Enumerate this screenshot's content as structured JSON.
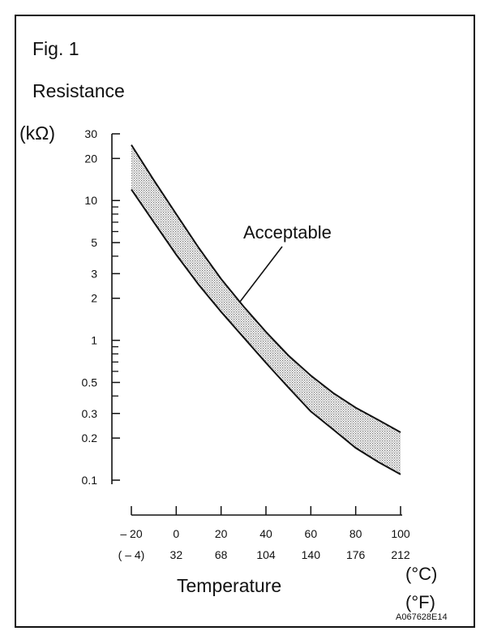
{
  "figure_label": "Fig. 1",
  "figure_code": "A067628E14",
  "colors": {
    "ink": "#111111",
    "band": "#c9c9c9"
  },
  "chart_data": {
    "type": "area",
    "title": "",
    "ylabel": "Resistance",
    "yunit": "(kΩ)",
    "xlabel": "Temperature",
    "xunit_c": "(°C)",
    "xunit_f": "(°F)",
    "yscale": "log",
    "ylim": [
      0.1,
      30
    ],
    "xlim": [
      -20,
      100
    ],
    "grid": false,
    "y_ticks": [
      "30",
      "20",
      "10",
      "5",
      "3",
      "2",
      "1",
      "0.5",
      "0.3",
      "0.2",
      "0.1"
    ],
    "x_ticks_c": [
      "– 20",
      "0",
      "20",
      "40",
      "60",
      "80",
      "100"
    ],
    "x_ticks_f": [
      "( – 4)",
      "32",
      "68",
      "104",
      "140",
      "176",
      "212"
    ],
    "band_label": "Acceptable",
    "series": [
      {
        "name": "",
        "x": [
          -20,
          -10,
          0,
          10,
          20,
          30,
          40,
          50,
          60,
          70,
          80,
          90,
          100
        ],
        "values": [
          25,
          14,
          8.0,
          4.6,
          2.75,
          1.75,
          1.15,
          0.78,
          0.56,
          0.42,
          0.33,
          0.27,
          0.22
        ]
      },
      {
        "name": "",
        "x": [
          -20,
          -10,
          0,
          10,
          20,
          30,
          40,
          50,
          60,
          70,
          80,
          90,
          100
        ],
        "values": [
          12,
          7.0,
          4.1,
          2.5,
          1.6,
          1.05,
          0.69,
          0.46,
          0.31,
          0.23,
          0.17,
          0.135,
          0.11
        ]
      }
    ]
  }
}
